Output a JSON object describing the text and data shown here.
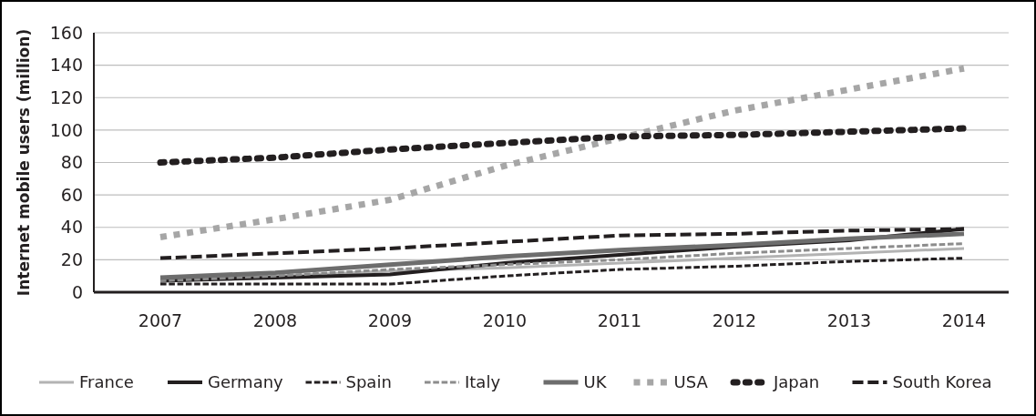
{
  "chart_data": {
    "type": "line",
    "ylabel": "Internet mobile users (million)",
    "categories": [
      "2007",
      "2008",
      "2009",
      "2010",
      "2011",
      "2012",
      "2013",
      "2014"
    ],
    "series": [
      {
        "name": "France",
        "color": "#b3b3b3",
        "line_style": "solid",
        "values": [
          8,
          10,
          13,
          15,
          18,
          21,
          24,
          27
        ]
      },
      {
        "name": "Germany",
        "color": "#231f20",
        "line_style": "solid",
        "values": [
          7,
          9,
          11,
          18,
          23,
          28,
          32,
          39
        ]
      },
      {
        "name": "Spain",
        "color": "#231f20",
        "line_style": "dashed",
        "values": [
          5,
          5,
          5,
          10,
          14,
          16,
          19,
          21
        ]
      },
      {
        "name": "Italy",
        "color": "#8c8c8c",
        "line_style": "dashed",
        "values": [
          7,
          10,
          14,
          17,
          20,
          24,
          27,
          30
        ]
      },
      {
        "name": "UK",
        "color": "#6d6d6d",
        "line_style": "solid",
        "values": [
          9,
          12,
          17,
          22,
          26,
          29,
          33,
          36
        ]
      },
      {
        "name": "USA",
        "color": "#a6a6a6",
        "line_style": "dotted",
        "values": [
          34,
          45,
          57,
          78,
          95,
          112,
          125,
          138
        ]
      },
      {
        "name": "Japan",
        "color": "#231f20",
        "line_style": "dotted",
        "values": [
          80,
          83,
          88,
          92,
          96,
          97,
          99,
          101
        ]
      },
      {
        "name": "South Korea",
        "color": "#231f20",
        "line_style": "dashed",
        "values": [
          21,
          24,
          27,
          31,
          35,
          36,
          38,
          39
        ]
      }
    ],
    "ylim": [
      0,
      160
    ],
    "yticks": [
      0,
      20,
      40,
      60,
      80,
      100,
      120,
      140,
      160
    ],
    "grid": "y",
    "legend": "bottom",
    "marker": "none"
  }
}
